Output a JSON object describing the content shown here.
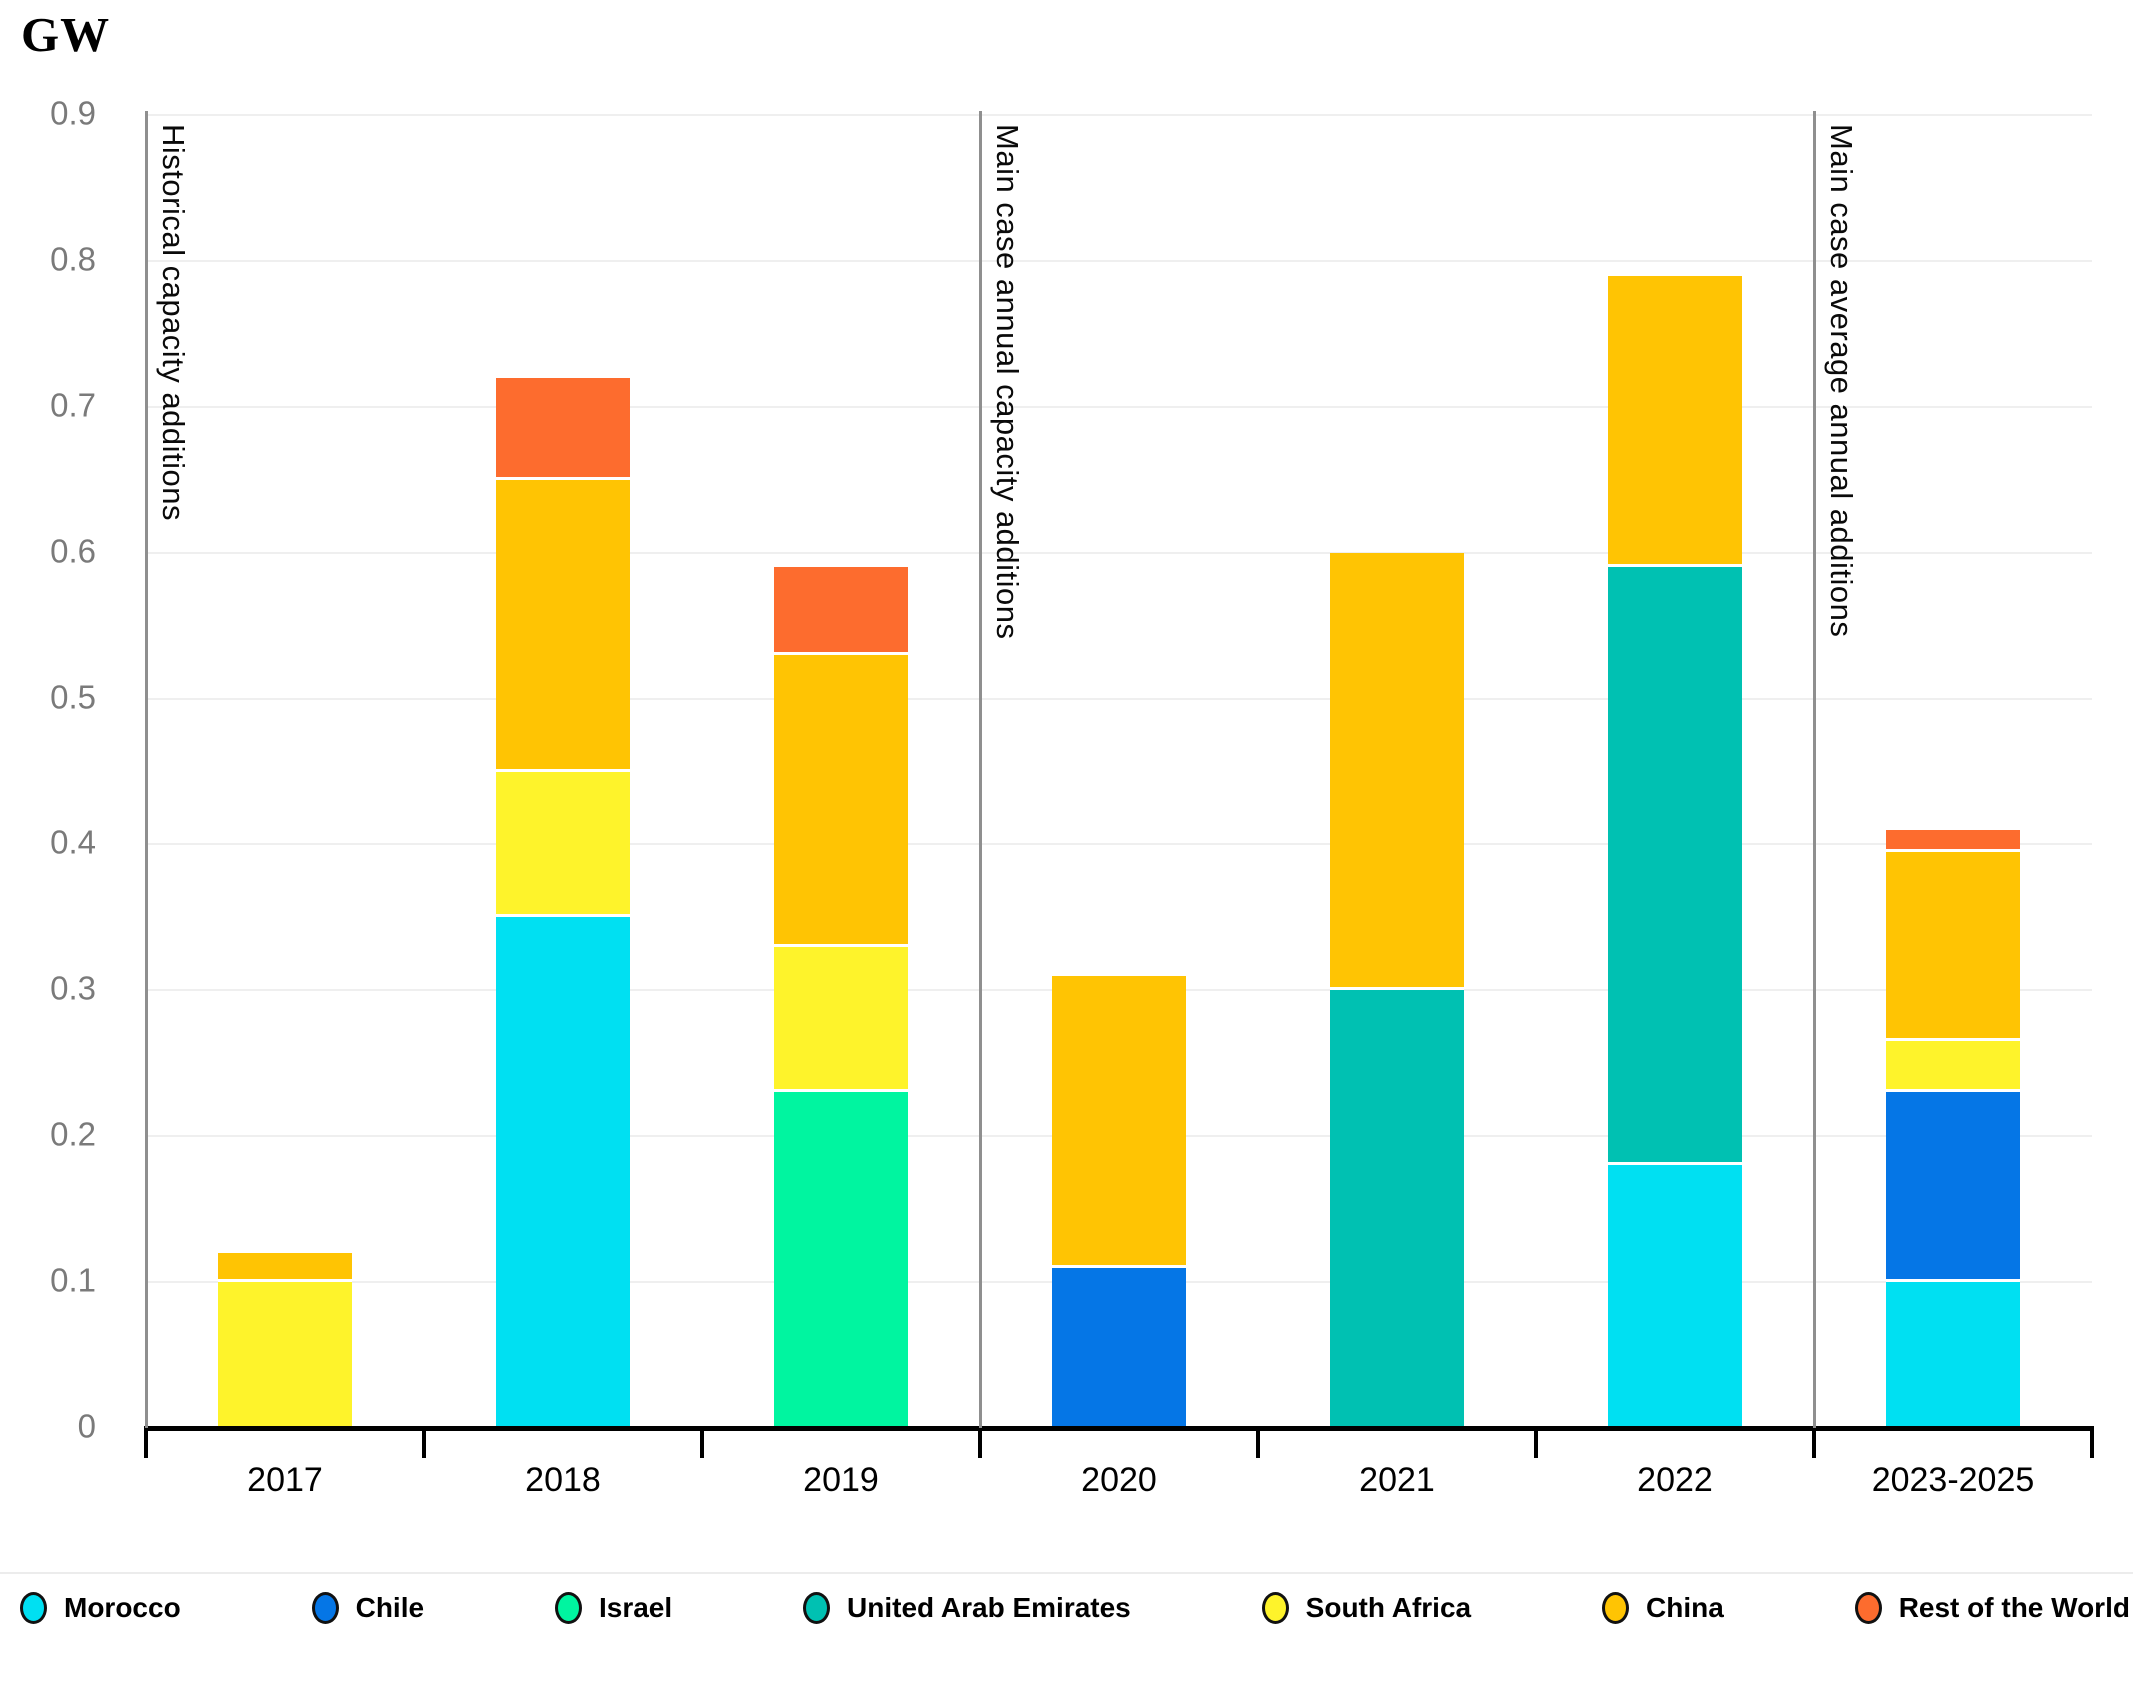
{
  "title": "GW",
  "y_axis": {
    "unit": "GW",
    "tick_values": [
      0,
      0.1,
      0.2,
      0.3,
      0.4,
      0.5,
      0.6,
      0.7,
      0.8,
      0.9
    ],
    "tick_labels": [
      "0",
      "0.1",
      "0.2",
      "0.3",
      "0.4",
      "0.5",
      "0.6",
      "0.7",
      "0.8",
      "0.9"
    ]
  },
  "sections": [
    {
      "label": "Historical capacity additions",
      "boundary_index": 0
    },
    {
      "label": "Main case annual capacity additions",
      "boundary_index": 3
    },
    {
      "label": "Main case average annual additions",
      "boundary_index": 6
    }
  ],
  "chart_data": {
    "type": "bar",
    "stacked": true,
    "title": "GW",
    "xlabel": "",
    "ylabel": "GW",
    "ylim": [
      0,
      0.9
    ],
    "grid": true,
    "legend_position": "bottom",
    "categories": [
      "2017",
      "2018",
      "2019",
      "2020",
      "2021",
      "2022",
      "2023-2025"
    ],
    "series": [
      {
        "name": "Morocco",
        "color": "#00e0f2",
        "values": [
          0,
          0.35,
          0,
          0,
          0,
          0.18,
          0.1
        ]
      },
      {
        "name": "Chile",
        "color": "#0576e6",
        "values": [
          0,
          0,
          0,
          0.11,
          0,
          0,
          0.13
        ]
      },
      {
        "name": "Israel",
        "color": "#00f5a0",
        "values": [
          0,
          0,
          0.23,
          0,
          0,
          0,
          0
        ]
      },
      {
        "name": "United Arab Emirates",
        "color": "#00c1b2",
        "values": [
          0,
          0,
          0,
          0,
          0.3,
          0.41,
          0
        ]
      },
      {
        "name": "South Africa",
        "color": "#fef32b",
        "values": [
          0.1,
          0.1,
          0.1,
          0,
          0,
          0,
          0.035
        ]
      },
      {
        "name": "China",
        "color": "#ffc403",
        "values": [
          0.02,
          0.2,
          0.2,
          0.2,
          0.3,
          0.2,
          0.13
        ]
      },
      {
        "name": "Rest of the World",
        "color": "#fd6c2e",
        "values": [
          0,
          0.07,
          0.06,
          0,
          0,
          0,
          0.015
        ]
      }
    ],
    "totals": [
      0.12,
      0.72,
      0.59,
      0.31,
      0.6,
      0.79,
      0.41
    ]
  },
  "legend": {
    "items": [
      {
        "label": "Morocco",
        "color": "#00e0f2"
      },
      {
        "label": "Chile",
        "color": "#0576e6"
      },
      {
        "label": "Israel",
        "color": "#00f5a0"
      },
      {
        "label": "United Arab Emirates",
        "color": "#00c1b2"
      },
      {
        "label": "South Africa",
        "color": "#fef32b"
      },
      {
        "label": "China",
        "color": "#ffc403"
      },
      {
        "label": "Rest of the World",
        "color": "#fd6c2e"
      }
    ]
  }
}
